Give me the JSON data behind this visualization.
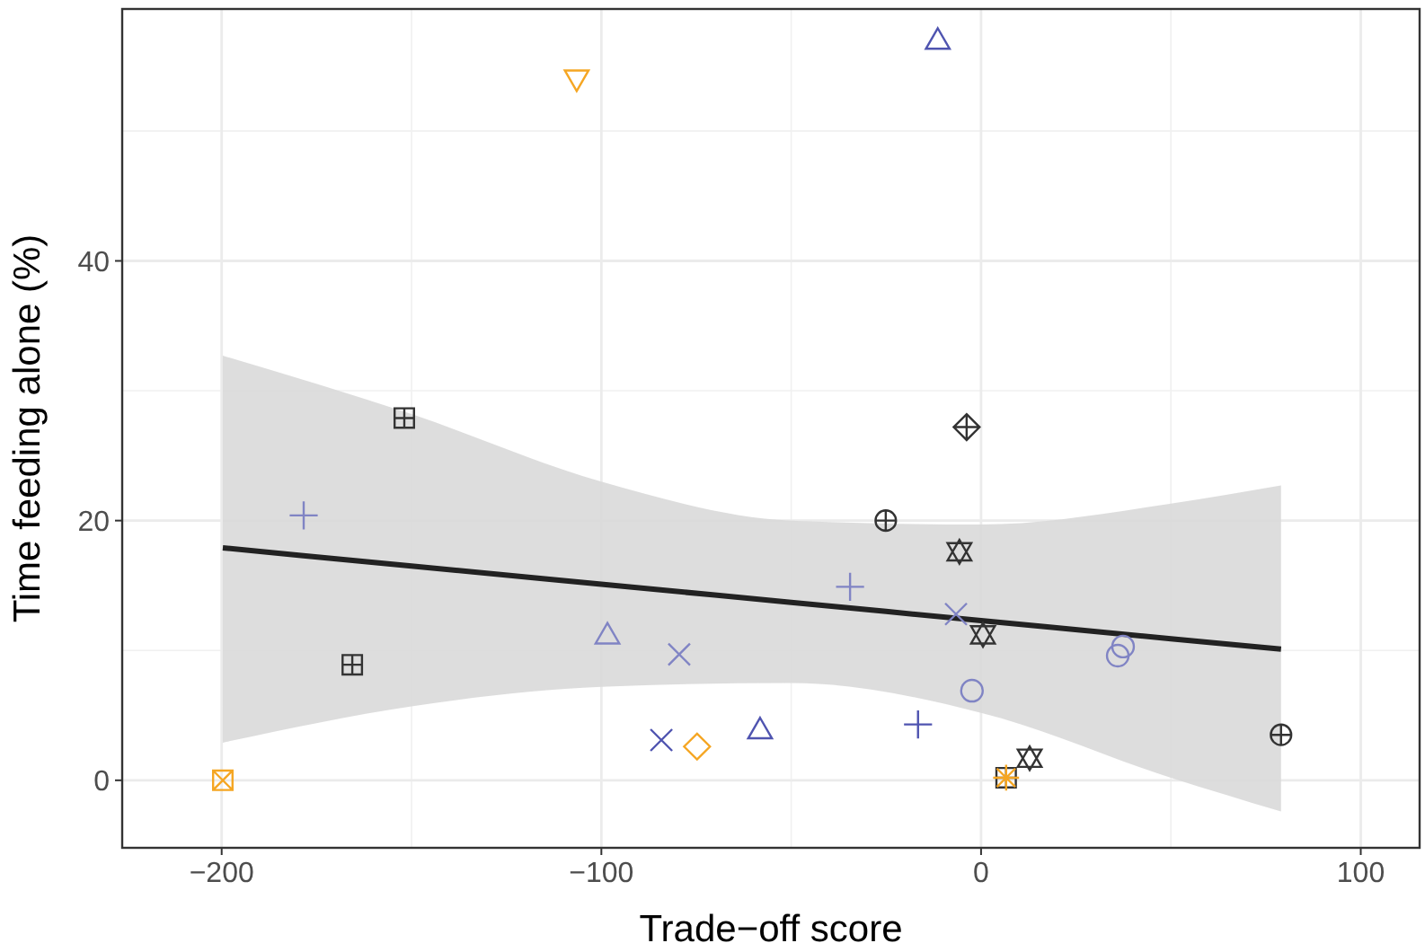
{
  "chart_data": {
    "type": "scatter",
    "xlabel": "Trade−off score",
    "ylabel": "Time feeding alone (%)",
    "xlim": [
      -226.2,
      115.5
    ],
    "ylim": [
      -5.2,
      59.4
    ],
    "xticks": [
      -200,
      -100,
      0,
      100
    ],
    "yticks": [
      0,
      20,
      40
    ],
    "grid": true,
    "series": [
      {
        "type": "line",
        "color": "#222222",
        "x": [
          -199.7,
          -150,
          -100,
          -50,
          0,
          50,
          79.0
        ],
        "values": [
          17.9,
          16.5,
          15.1,
          13.7,
          12.3,
          10.9,
          10.1
        ],
        "lower": [
          2.9,
          5.7,
          7.2,
          7.5,
          5.2,
          0.2,
          -2.4
        ],
        "upper": [
          32.7,
          28.2,
          23.0,
          20.0,
          19.7,
          21.3,
          22.7
        ]
      },
      {
        "color": "#333333",
        "x": [
          -151.9,
          -165.6,
          6.6
        ],
        "values": [
          27.9,
          8.9,
          0.2
        ]
      },
      {
        "color": "#333333",
        "x": [
          -25.1,
          79.0
        ],
        "values": [
          20.0,
          3.5
        ]
      },
      {
        "color": "#333333",
        "x": [
          -3.8
        ],
        "values": [
          27.2
        ]
      },
      {
        "color": "#333333",
        "x": [
          -5.7,
          0.5,
          12.8
        ],
        "values": [
          17.6,
          11.2,
          1.7
        ]
      },
      {
        "color": "#8084c4",
        "marker": "cross",
        "x": [
          -178.4,
          -34.5
        ],
        "values": [
          20.4,
          14.9
        ]
      },
      {
        "color": "#8084c4",
        "marker": "triangle",
        "x": [
          -98.4
        ],
        "values": [
          11.2
        ]
      },
      {
        "color": "#8084c4",
        "marker": "x",
        "x": [
          -79.5,
          -6.6
        ],
        "values": [
          9.7,
          12.8
        ]
      },
      {
        "color": "#8084c4",
        "marker": "circle",
        "x": [
          -2.4,
          36.0,
          37.4
        ],
        "values": [
          6.9,
          9.6,
          10.3
        ]
      },
      {
        "color": "#4f54b0",
        "marker": "x",
        "x": [
          -84.2
        ],
        "values": [
          3.1
        ]
      },
      {
        "color": "#4f54b0",
        "marker": "triangle",
        "x": [
          -58.2,
          -11.4
        ],
        "values": [
          3.9,
          57.0
        ]
      },
      {
        "color": "#4f54b0",
        "marker": "cross",
        "x": [
          -16.6
        ],
        "values": [
          4.3
        ]
      },
      {
        "color": "#f5a623",
        "x": [
          -199.7
        ],
        "values": [
          0
        ]
      },
      {
        "color": "#f5a623",
        "marker": "diamond",
        "x": [
          -74.8
        ],
        "values": [
          2.6
        ]
      },
      {
        "color": "#f5a623",
        "marker": "triangle-down",
        "x": [
          -106.5
        ],
        "values": [
          54.0
        ]
      },
      {
        "color": "#f5a623",
        "x": [
          6.6
        ],
        "values": [
          0.2
        ]
      }
    ]
  }
}
